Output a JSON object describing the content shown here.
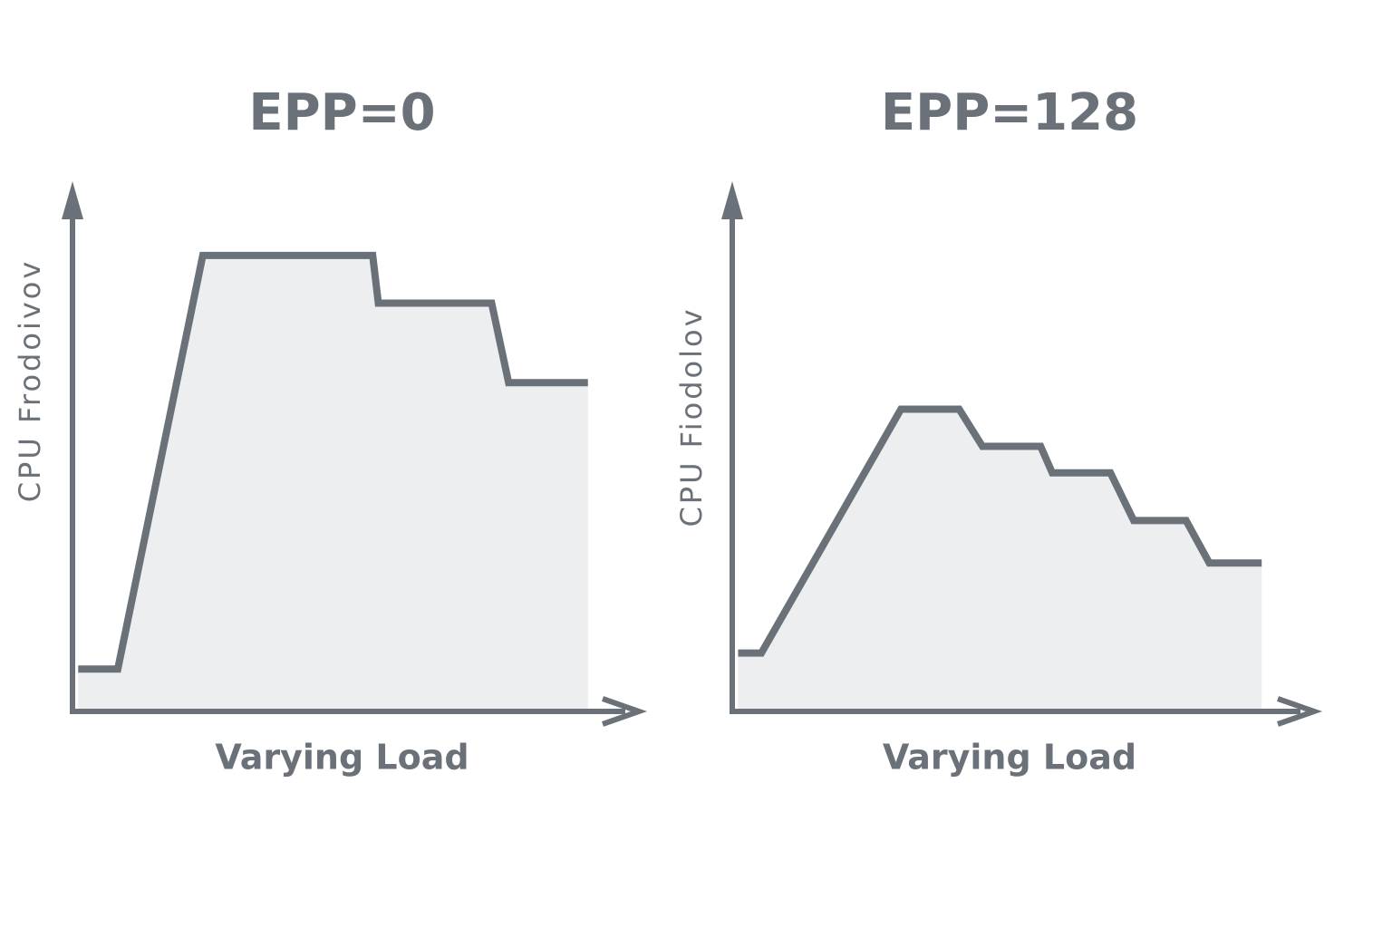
{
  "chart_data": [
    {
      "type": "area",
      "title": "EPP=0",
      "x_label": "Varying Load",
      "y_label": "CPU Frodoivov",
      "x": [
        1,
        8,
        23,
        53,
        54,
        74,
        77,
        91
      ],
      "values": [
        8,
        8,
        86,
        86,
        77,
        77,
        62,
        62
      ],
      "xlim": [
        0,
        100
      ],
      "ylim": [
        0,
        100
      ],
      "color": "#6b7178",
      "fill_color": "#eceef0"
    },
    {
      "type": "area",
      "title": "EPP=128",
      "x_label": "Varying Load",
      "y_label": "CPU Fiodolov",
      "x": [
        1,
        5,
        29,
        39,
        43,
        53,
        55,
        65,
        69,
        78,
        82,
        91
      ],
      "values": [
        11,
        11,
        57,
        57,
        50,
        50,
        45,
        45,
        36,
        36,
        28,
        28
      ],
      "xlim": [
        0,
        100
      ],
      "ylim": [
        0,
        100
      ],
      "color": "#6b7178",
      "fill_color": "#eceef0"
    }
  ]
}
